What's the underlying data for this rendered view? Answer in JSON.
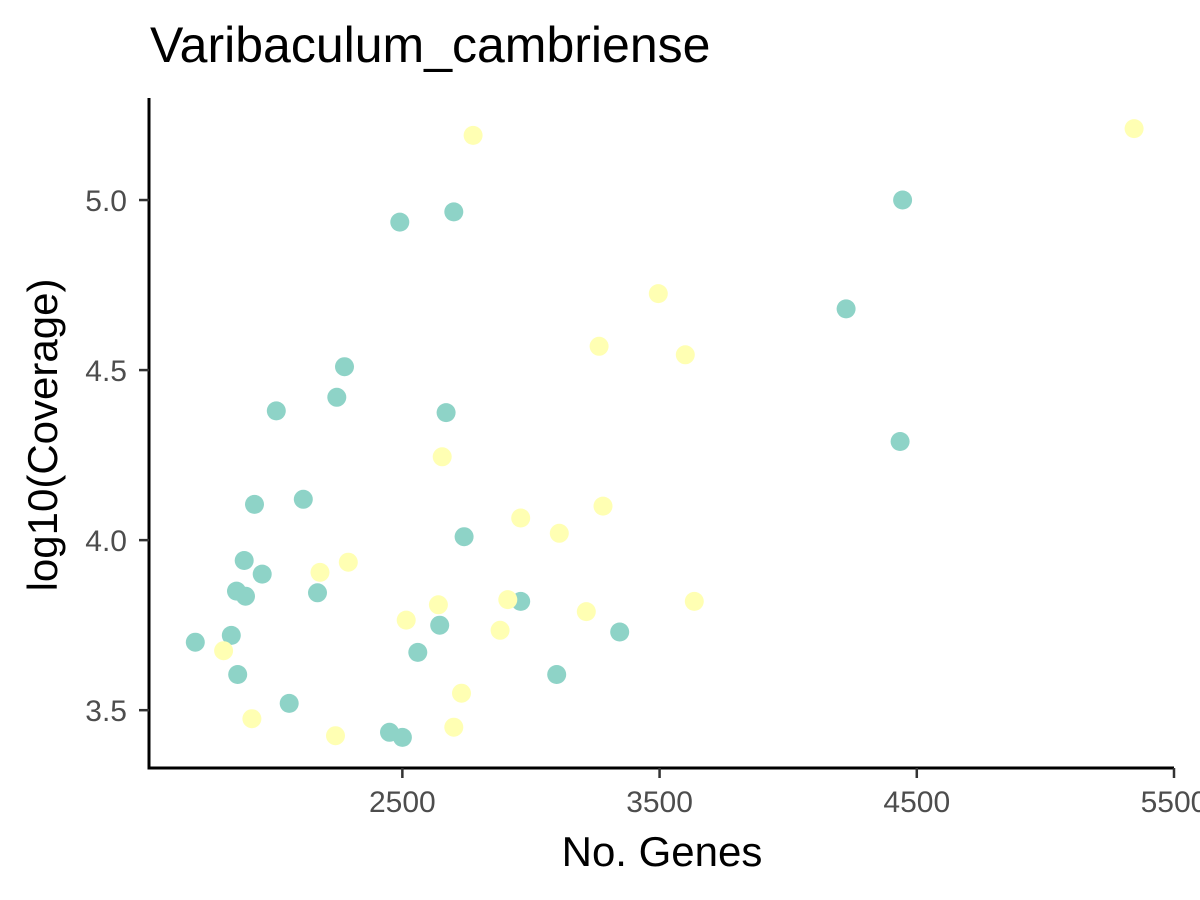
{
  "chart_data": {
    "type": "scatter",
    "title": "Varibaculum_cambriense",
    "xlabel": "No. Genes",
    "ylabel": "log10(Coverage)",
    "xlim": [
      1515,
      5500
    ],
    "ylim": [
      3.33,
      5.3
    ],
    "x_ticks": [
      2500,
      3500,
      4500,
      5500
    ],
    "x_tick_labels": [
      "2500",
      "3500",
      "4500",
      "5500"
    ],
    "y_ticks": [
      3.5,
      4.0,
      4.5,
      5.0
    ],
    "y_tick_labels": [
      "3.5",
      "4.0",
      "4.5",
      "5.0"
    ],
    "grid": false,
    "legend": "none",
    "series": [
      {
        "color": "#8ED3C7",
        "points": [
          {
            "x": 1695,
            "y": 3.7
          },
          {
            "x": 1835,
            "y": 3.72
          },
          {
            "x": 1855,
            "y": 3.85
          },
          {
            "x": 1860,
            "y": 3.605
          },
          {
            "x": 1885,
            "y": 3.94
          },
          {
            "x": 1890,
            "y": 3.835
          },
          {
            "x": 1925,
            "y": 4.105
          },
          {
            "x": 1955,
            "y": 3.9
          },
          {
            "x": 2010,
            "y": 4.38
          },
          {
            "x": 2060,
            "y": 3.52
          },
          {
            "x": 2115,
            "y": 4.12
          },
          {
            "x": 2170,
            "y": 3.845
          },
          {
            "x": 2245,
            "y": 4.42
          },
          {
            "x": 2275,
            "y": 4.51
          },
          {
            "x": 2450,
            "y": 3.435
          },
          {
            "x": 2490,
            "y": 4.935
          },
          {
            "x": 2500,
            "y": 3.42
          },
          {
            "x": 2560,
            "y": 3.67
          },
          {
            "x": 2645,
            "y": 3.75
          },
          {
            "x": 2670,
            "y": 4.375
          },
          {
            "x": 2700,
            "y": 4.965
          },
          {
            "x": 2740,
            "y": 4.01
          },
          {
            "x": 2960,
            "y": 3.82
          },
          {
            "x": 3100,
            "y": 3.605
          },
          {
            "x": 3345,
            "y": 3.73
          },
          {
            "x": 4225,
            "y": 4.68
          },
          {
            "x": 4435,
            "y": 4.29
          },
          {
            "x": 4445,
            "y": 5.0
          }
        ]
      },
      {
        "color": "#FFFFB3",
        "points": [
          {
            "x": 1805,
            "y": 3.675
          },
          {
            "x": 1915,
            "y": 3.475
          },
          {
            "x": 2180,
            "y": 3.905
          },
          {
            "x": 2240,
            "y": 3.425
          },
          {
            "x": 2290,
            "y": 3.935
          },
          {
            "x": 2515,
            "y": 3.765
          },
          {
            "x": 2640,
            "y": 3.81
          },
          {
            "x": 2655,
            "y": 4.245
          },
          {
            "x": 2700,
            "y": 3.45
          },
          {
            "x": 2730,
            "y": 3.55
          },
          {
            "x": 2775,
            "y": 5.19
          },
          {
            "x": 2880,
            "y": 3.735
          },
          {
            "x": 2910,
            "y": 3.825
          },
          {
            "x": 2960,
            "y": 4.065
          },
          {
            "x": 3110,
            "y": 4.02
          },
          {
            "x": 3215,
            "y": 3.79
          },
          {
            "x": 3265,
            "y": 4.57
          },
          {
            "x": 3280,
            "y": 4.1
          },
          {
            "x": 3495,
            "y": 4.725
          },
          {
            "x": 3600,
            "y": 4.545
          },
          {
            "x": 3635,
            "y": 3.82
          },
          {
            "x": 5345,
            "y": 5.21
          }
        ]
      }
    ]
  }
}
